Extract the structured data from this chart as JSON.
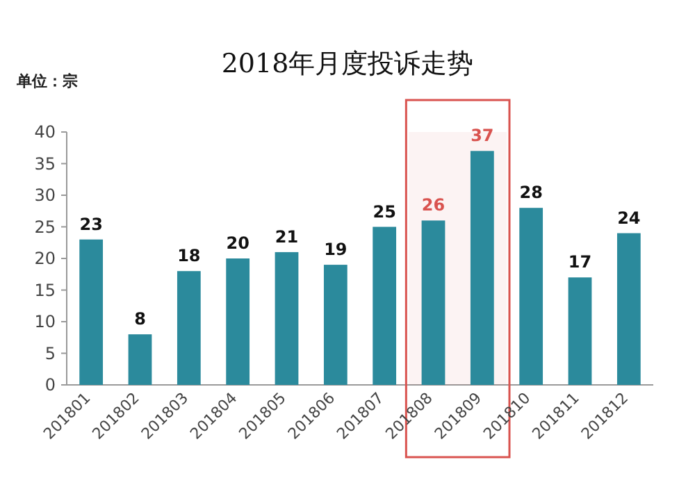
{
  "chart_data": {
    "type": "bar",
    "title": "2018年月度投诉走势",
    "annotations": [
      "单位：宗"
    ],
    "categories": [
      "201801",
      "201802",
      "201803",
      "201804",
      "201805",
      "201806",
      "201807",
      "201808",
      "201809",
      "201810",
      "201811",
      "201812"
    ],
    "values": [
      23,
      8,
      18,
      20,
      21,
      19,
      25,
      26,
      37,
      28,
      17,
      24
    ],
    "color": "#2b8a9c",
    "ylim": [
      0,
      40
    ],
    "yticks": [
      0,
      5,
      10,
      15,
      20,
      25,
      30,
      35,
      40
    ],
    "grid": false,
    "data_labels": true,
    "bands": [
      {
        "axis": "x",
        "from": "201808",
        "to": "201809",
        "color": "#d9534f"
      }
    ]
  }
}
